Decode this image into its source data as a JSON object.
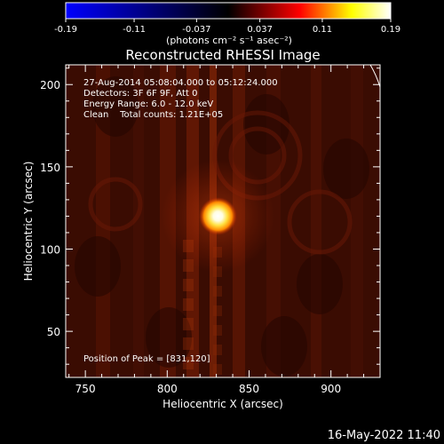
{
  "chart_data": {
    "type": "heatmap",
    "title": "Reconstructed RHESSI Image",
    "xlabel": "Heliocentric X (arcsec)",
    "ylabel": "Heliocentric Y (arcsec)",
    "xlim": [
      738,
      930
    ],
    "ylim": [
      22,
      212
    ],
    "xticks": [
      750,
      800,
      850,
      900
    ],
    "xtick_labels": [
      "750",
      "800",
      "850",
      "900"
    ],
    "yticks": [
      50,
      100,
      150,
      200
    ],
    "ytick_labels": [
      "50",
      "100",
      "150",
      "200"
    ],
    "grid": false,
    "colorbar": {
      "range": [
        -0.19,
        0.19
      ],
      "ticks": [
        -0.19,
        -0.11,
        -0.037,
        0.037,
        0.11,
        0.19
      ],
      "tick_labels": [
        "-0.19",
        "-0.11",
        "-0.037",
        "0.037",
        "0.11",
        "0.19"
      ],
      "units": "(photons cm⁻² s⁻¹ asec⁻²)",
      "colormap_stops": [
        "#0000ff",
        "#000000",
        "#ff0000",
        "#ffff00",
        "#ffffff"
      ]
    },
    "source": {
      "x": 831,
      "y": 120,
      "peak_value": 0.19,
      "fwhm_arcsec": 10
    },
    "annotations": [
      "27-Aug-2014 05:08:04.000 to 05:12:24.000",
      "Detectors: 3F 6F 9F, Att 0",
      "Energy Range: 6.0 - 12.0 keV",
      "Clean    Total counts: 1.21E+05"
    ],
    "peak_text": "Position of Peak = [831,120]"
  },
  "footer_timestamp": "16-May-2022 11:40"
}
